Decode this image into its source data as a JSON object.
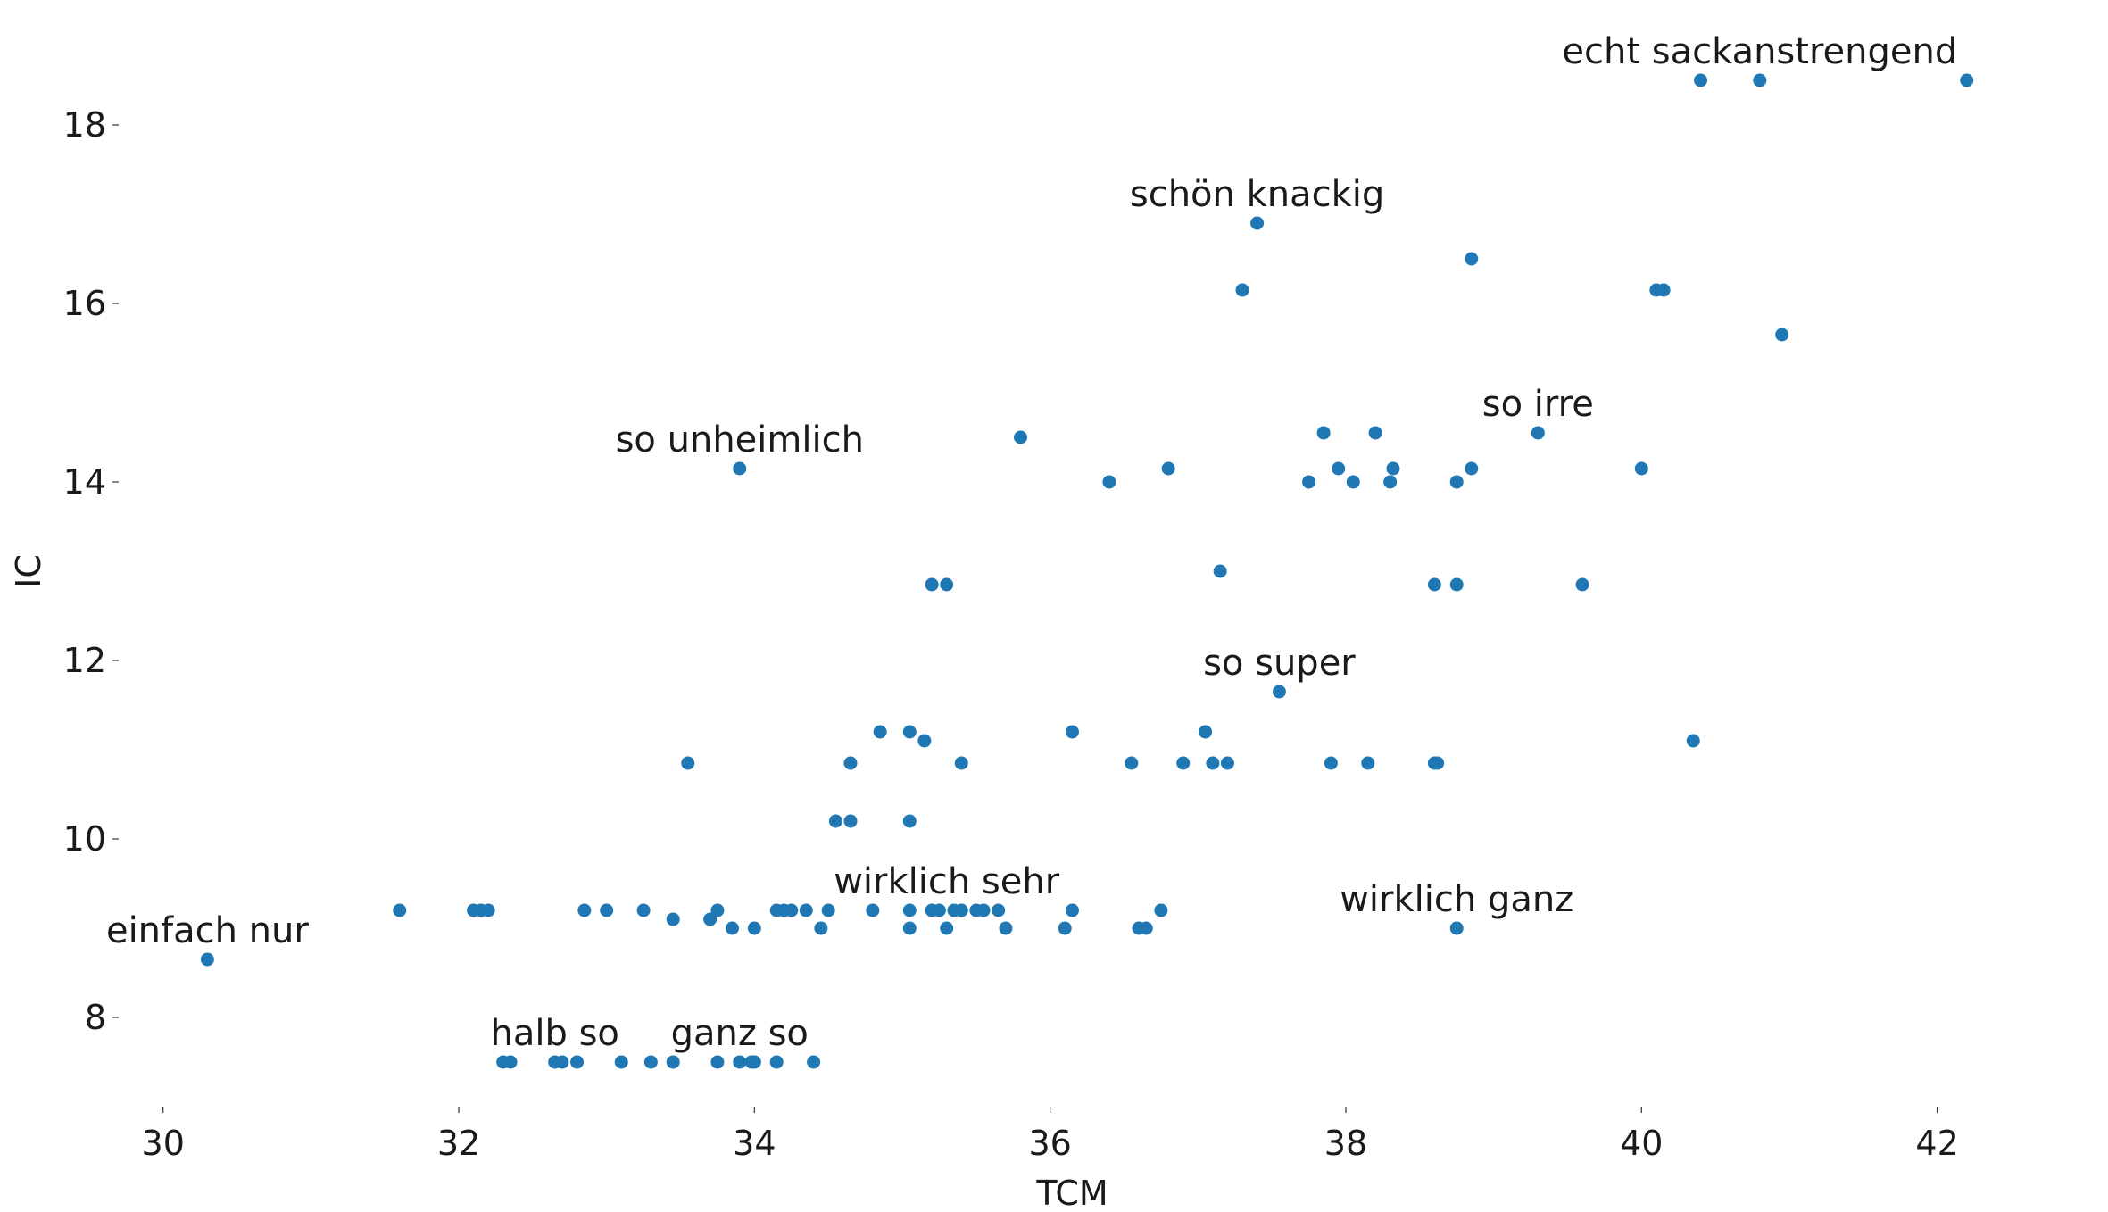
{
  "chart_data": {
    "type": "scatter",
    "xlabel": "TCM",
    "ylabel": "IC",
    "xlim": [
      29.7,
      42.6
    ],
    "ylim": [
      7.0,
      19.0
    ],
    "xticks": [
      30,
      32,
      34,
      36,
      38,
      40,
      42
    ],
    "yticks": [
      8,
      10,
      12,
      14,
      16,
      18
    ],
    "grid": false,
    "marker_color": "#1f77b4",
    "points": [
      [
        30.3,
        8.65
      ],
      [
        31.6,
        9.2
      ],
      [
        32.1,
        9.2
      ],
      [
        32.15,
        9.2
      ],
      [
        32.2,
        9.2
      ],
      [
        32.85,
        9.2
      ],
      [
        33.0,
        9.2
      ],
      [
        33.25,
        9.2
      ],
      [
        33.45,
        9.1
      ],
      [
        33.7,
        9.1
      ],
      [
        33.75,
        9.2
      ],
      [
        33.85,
        9.0
      ],
      [
        34.0,
        9.0
      ],
      [
        34.15,
        9.2
      ],
      [
        34.2,
        9.2
      ],
      [
        34.25,
        9.2
      ],
      [
        34.35,
        9.2
      ],
      [
        34.45,
        9.0
      ],
      [
        34.5,
        9.2
      ],
      [
        34.8,
        9.2
      ],
      [
        35.05,
        9.2
      ],
      [
        35.05,
        9.0
      ],
      [
        35.2,
        9.2
      ],
      [
        35.25,
        9.2
      ],
      [
        35.3,
        9.0
      ],
      [
        35.35,
        9.2
      ],
      [
        35.4,
        9.2
      ],
      [
        35.5,
        9.2
      ],
      [
        35.55,
        9.2
      ],
      [
        35.65,
        9.2
      ],
      [
        35.7,
        9.0
      ],
      [
        36.1,
        9.0
      ],
      [
        36.15,
        9.2
      ],
      [
        36.6,
        9.0
      ],
      [
        36.65,
        9.0
      ],
      [
        36.75,
        9.2
      ],
      [
        38.75,
        9.0
      ],
      [
        32.3,
        7.5
      ],
      [
        32.35,
        7.5
      ],
      [
        32.65,
        7.5
      ],
      [
        32.7,
        7.5
      ],
      [
        32.8,
        7.5
      ],
      [
        33.1,
        7.5
      ],
      [
        33.3,
        7.5
      ],
      [
        33.45,
        7.5
      ],
      [
        33.75,
        7.5
      ],
      [
        33.9,
        7.5
      ],
      [
        33.98,
        7.5
      ],
      [
        34.0,
        7.5
      ],
      [
        34.15,
        7.5
      ],
      [
        34.4,
        7.5
      ],
      [
        34.55,
        10.2
      ],
      [
        34.65,
        10.2
      ],
      [
        35.05,
        10.2
      ],
      [
        33.55,
        10.85
      ],
      [
        34.65,
        10.85
      ],
      [
        35.4,
        10.85
      ],
      [
        36.55,
        10.85
      ],
      [
        36.9,
        10.85
      ],
      [
        37.1,
        10.85
      ],
      [
        37.2,
        10.85
      ],
      [
        37.9,
        10.85
      ],
      [
        38.15,
        10.85
      ],
      [
        38.6,
        10.85
      ],
      [
        38.62,
        10.85
      ],
      [
        34.85,
        11.2
      ],
      [
        35.05,
        11.2
      ],
      [
        35.15,
        11.1
      ],
      [
        36.15,
        11.2
      ],
      [
        37.05,
        11.2
      ],
      [
        40.35,
        11.1
      ],
      [
        37.55,
        11.65
      ],
      [
        35.2,
        12.85
      ],
      [
        35.3,
        12.85
      ],
      [
        37.15,
        13.0
      ],
      [
        38.6,
        12.85
      ],
      [
        38.75,
        12.85
      ],
      [
        39.6,
        12.85
      ],
      [
        33.9,
        14.15
      ],
      [
        35.8,
        14.5
      ],
      [
        36.4,
        14.0
      ],
      [
        36.8,
        14.15
      ],
      [
        37.75,
        14.0
      ],
      [
        37.85,
        14.55
      ],
      [
        37.95,
        14.15
      ],
      [
        38.05,
        14.0
      ],
      [
        38.2,
        14.55
      ],
      [
        38.3,
        14.0
      ],
      [
        38.32,
        14.15
      ],
      [
        38.75,
        14.0
      ],
      [
        38.85,
        14.15
      ],
      [
        39.3,
        14.55
      ],
      [
        40.0,
        14.15
      ],
      [
        37.3,
        16.15
      ],
      [
        37.4,
        16.9
      ],
      [
        38.85,
        16.5
      ],
      [
        40.1,
        16.15
      ],
      [
        40.15,
        16.15
      ],
      [
        40.95,
        15.65
      ],
      [
        40.4,
        18.5
      ],
      [
        40.8,
        18.5
      ],
      [
        42.2,
        18.5
      ]
    ],
    "annotations": [
      {
        "text": "echt sackanstrengend",
        "x": 40.8,
        "y": 18.5
      },
      {
        "text": "schön knackig",
        "x": 37.4,
        "y": 16.9
      },
      {
        "text": "so irre",
        "x": 39.3,
        "y": 14.55
      },
      {
        "text": "so unheimlich",
        "x": 33.9,
        "y": 14.15
      },
      {
        "text": "so super",
        "x": 37.55,
        "y": 11.65
      },
      {
        "text": "wirklich sehr",
        "x": 35.3,
        "y": 9.2
      },
      {
        "text": "wirklich ganz",
        "x": 38.75,
        "y": 9.0
      },
      {
        "text": "einfach nur",
        "x": 30.3,
        "y": 8.65
      },
      {
        "text": "halb so",
        "x": 32.65,
        "y": 7.5
      },
      {
        "text": "ganz so",
        "x": 33.9,
        "y": 7.5
      }
    ]
  }
}
